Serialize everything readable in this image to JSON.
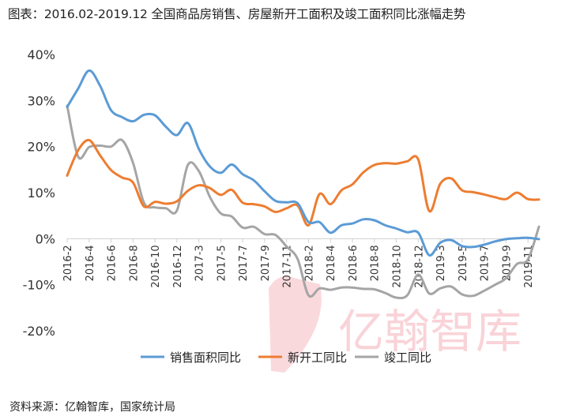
{
  "chart_data": {
    "type": "line",
    "title": "图表：2016.02-2019.12 全国商品房销售、房屋新开工面积及竣工面积同比涨幅走势",
    "xlabel": "",
    "ylabel": "",
    "ylim": [
      -20,
      40
    ],
    "yticks": [
      -20,
      -10,
      0,
      10,
      20,
      30,
      40
    ],
    "ytick_labels": [
      "-20%",
      "-10%",
      "0%",
      "10%",
      "20%",
      "30%",
      "40%"
    ],
    "grid": false,
    "legend_position": "bottom",
    "x": [
      "2016-2",
      "2016-3",
      "2016-4",
      "2016-5",
      "2016-6",
      "2016-7",
      "2016-8",
      "2016-9",
      "2016-10",
      "2016-11",
      "2016-12",
      "2017-2",
      "2017-3",
      "2017-4",
      "2017-5",
      "2017-6",
      "2017-7",
      "2017-8",
      "2017-9",
      "2017-10",
      "2017-11",
      "2017-12",
      "2018-2",
      "2018-3",
      "2018-4",
      "2018-5",
      "2018-6",
      "2018-7",
      "2018-8",
      "2018-9",
      "2018-10",
      "2018-11",
      "2018-12",
      "2019-2",
      "2019-3",
      "2019-4",
      "2019-5",
      "2019-6",
      "2019-7",
      "2019-8",
      "2019-9",
      "2019-10",
      "2019-11",
      "2019-12"
    ],
    "x_tick_labels": [
      "2016-2",
      "2016-4",
      "2016-6",
      "2016-8",
      "2016-10",
      "2016-12",
      "2017-3",
      "2017-5",
      "2017-7",
      "2017-9",
      "2017-11",
      "2018-2",
      "2018-4",
      "2018-6",
      "2018-8",
      "2018-10",
      "2018-12",
      "2019-3",
      "2019-5",
      "2019-7",
      "2019-9",
      "2019-11"
    ],
    "series": [
      {
        "name": "销售面积同比",
        "color": "#5b9bd5",
        "values": [
          28.6,
          32.6,
          36.5,
          33.2,
          27.9,
          26.4,
          25.5,
          26.9,
          26.8,
          24.3,
          22.5,
          25.1,
          19.5,
          15.7,
          14.3,
          16.1,
          14.0,
          12.7,
          10.3,
          8.2,
          7.9,
          7.7,
          3.6,
          3.6,
          1.3,
          2.9,
          3.3,
          4.2,
          4.0,
          2.9,
          2.2,
          1.4,
          1.3,
          -3.6,
          -0.9,
          -0.3,
          -1.6,
          -1.8,
          -1.3,
          -0.6,
          -0.1,
          0.1,
          0.2,
          -0.1
        ]
      },
      {
        "name": "新开工同比",
        "color": "#ed7d31",
        "values": [
          13.7,
          19.2,
          21.4,
          18.1,
          14.9,
          13.3,
          12.2,
          7.0,
          8.0,
          7.6,
          8.1,
          10.4,
          11.6,
          11.0,
          9.5,
          10.6,
          7.8,
          7.5,
          7.0,
          5.8,
          6.6,
          7.2,
          2.9,
          9.7,
          7.5,
          10.5,
          11.8,
          14.4,
          16.0,
          16.4,
          16.3,
          16.8,
          17.2,
          6.0,
          11.9,
          13.1,
          10.5,
          10.1,
          9.6,
          9.0,
          8.6,
          10.0,
          8.6,
          8.5
        ]
      },
      {
        "name": "竣工同比",
        "color": "#a5a5a5",
        "values": [
          28.9,
          17.8,
          19.9,
          20.2,
          20.0,
          21.4,
          16.5,
          7.8,
          6.8,
          6.6,
          6.1,
          16.0,
          14.7,
          9.1,
          5.5,
          4.8,
          2.4,
          2.6,
          1.0,
          0.8,
          -1.7,
          -4.4,
          -12.3,
          -10.8,
          -11.1,
          -10.6,
          -10.6,
          -10.9,
          -11.0,
          -11.8,
          -12.8,
          -12.3,
          -7.8,
          -11.9,
          -10.8,
          -10.4,
          -12.1,
          -12.4,
          -11.3,
          -10.0,
          -8.6,
          -5.5,
          -4.5,
          2.6
        ]
      }
    ]
  },
  "source": "资料来源：亿翰智库，国家统计局",
  "watermark": {
    "text": "亿翰智库",
    "color": "#e8707f"
  }
}
